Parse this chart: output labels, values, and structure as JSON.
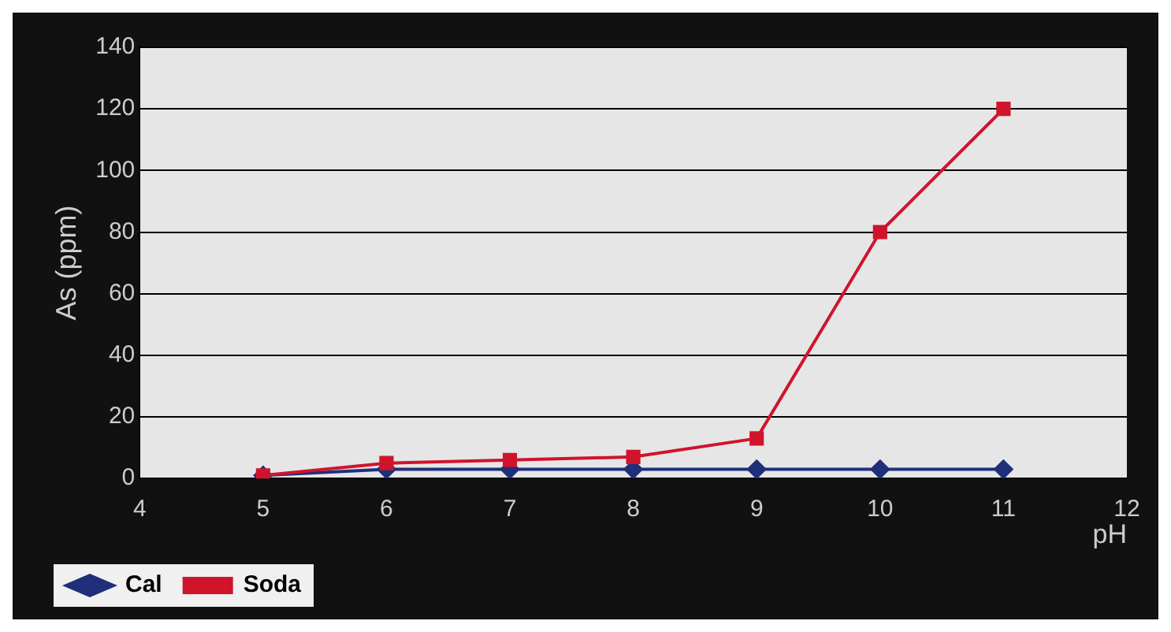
{
  "chart_data": {
    "type": "line",
    "xlabel": "pH",
    "ylabel": "As (ppm)",
    "x": [
      5,
      6,
      7,
      8,
      9,
      10,
      11
    ],
    "series": [
      {
        "name": "Cal",
        "color": "#1f2f7a",
        "values": [
          1,
          3,
          3,
          3,
          3,
          3,
          3
        ],
        "marker": "diamond"
      },
      {
        "name": "Soda",
        "color": "#d0142c",
        "values": [
          1,
          5,
          6,
          7,
          13,
          80,
          120
        ],
        "marker": "square"
      }
    ],
    "xlim": [
      4,
      12
    ],
    "xticks": [
      4,
      5,
      6,
      7,
      8,
      9,
      10,
      11,
      12
    ],
    "ylim": [
      0,
      140
    ],
    "yticks": [
      0,
      20,
      40,
      60,
      80,
      100,
      120,
      140
    ],
    "grid": "y",
    "legend": "bottom left"
  }
}
